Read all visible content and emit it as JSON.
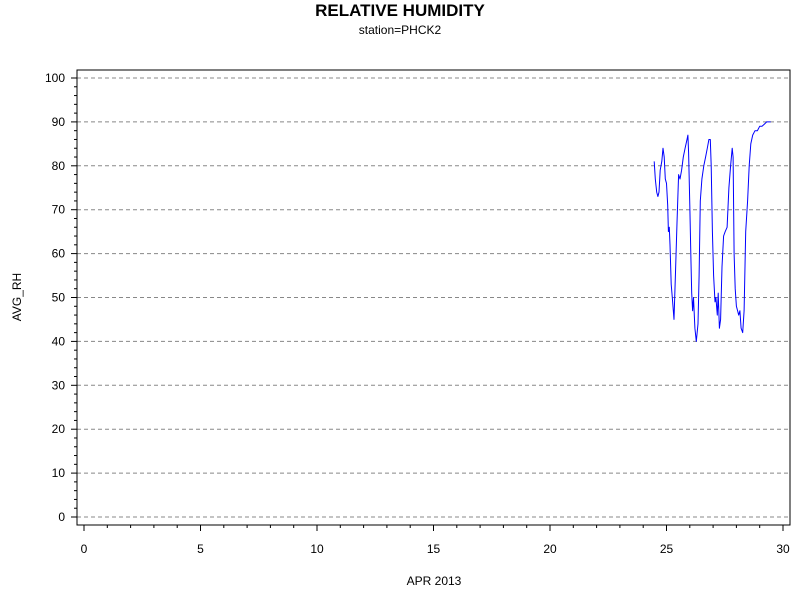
{
  "chart_data": {
    "type": "line",
    "title": "RELATIVE HUMIDITY",
    "subtitle": "station=PHCK2",
    "xlabel": "APR 2013",
    "ylabel": "AVG_RH",
    "xlim": [
      0,
      30
    ],
    "ylim": [
      0,
      100
    ],
    "x_ticks": [
      0,
      5,
      10,
      15,
      20,
      25,
      30
    ],
    "y_ticks": [
      0,
      10,
      20,
      30,
      40,
      50,
      60,
      70,
      80,
      90,
      100
    ],
    "grid": "horizontal-dashed",
    "series": [
      {
        "color": "#0000ff",
        "points": [
          [
            24.47,
            81
          ],
          [
            24.52,
            77
          ],
          [
            24.58,
            74
          ],
          [
            24.63,
            73
          ],
          [
            24.68,
            74
          ],
          [
            24.73,
            79
          ],
          [
            24.8,
            81
          ],
          [
            24.85,
            84
          ],
          [
            24.9,
            82
          ],
          [
            24.95,
            77
          ],
          [
            25.0,
            76
          ],
          [
            25.05,
            71
          ],
          [
            25.08,
            65
          ],
          [
            25.12,
            66
          ],
          [
            25.15,
            62
          ],
          [
            25.2,
            53
          ],
          [
            25.25,
            50
          ],
          [
            25.32,
            45
          ],
          [
            25.38,
            55
          ],
          [
            25.45,
            67
          ],
          [
            25.52,
            78
          ],
          [
            25.58,
            77
          ],
          [
            25.65,
            79
          ],
          [
            25.72,
            82
          ],
          [
            25.8,
            84
          ],
          [
            25.88,
            86
          ],
          [
            25.92,
            87
          ],
          [
            25.95,
            83
          ],
          [
            26.0,
            71
          ],
          [
            26.05,
            58
          ],
          [
            26.08,
            51
          ],
          [
            26.12,
            47
          ],
          [
            26.16,
            50
          ],
          [
            26.22,
            43
          ],
          [
            26.28,
            40
          ],
          [
            26.35,
            44
          ],
          [
            26.4,
            55
          ],
          [
            26.45,
            72
          ],
          [
            26.52,
            77
          ],
          [
            26.6,
            80
          ],
          [
            26.68,
            82
          ],
          [
            26.75,
            84
          ],
          [
            26.82,
            86
          ],
          [
            26.88,
            86
          ],
          [
            26.92,
            80
          ],
          [
            26.97,
            65
          ],
          [
            27.02,
            55
          ],
          [
            27.08,
            49
          ],
          [
            27.12,
            50
          ],
          [
            27.18,
            46
          ],
          [
            27.22,
            51
          ],
          [
            27.27,
            43
          ],
          [
            27.32,
            45
          ],
          [
            27.38,
            57
          ],
          [
            27.45,
            64
          ],
          [
            27.52,
            65
          ],
          [
            27.6,
            66
          ],
          [
            27.68,
            75
          ],
          [
            27.75,
            80
          ],
          [
            27.82,
            84
          ],
          [
            27.86,
            82
          ],
          [
            27.9,
            60
          ],
          [
            27.95,
            52
          ],
          [
            28.0,
            48
          ],
          [
            28.05,
            47
          ],
          [
            28.1,
            46
          ],
          [
            28.15,
            47
          ],
          [
            28.2,
            43
          ],
          [
            28.27,
            42
          ],
          [
            28.33,
            47
          ],
          [
            28.4,
            65
          ],
          [
            28.48,
            72
          ],
          [
            28.55,
            80
          ],
          [
            28.62,
            85
          ],
          [
            28.7,
            87
          ],
          [
            28.8,
            88
          ],
          [
            28.9,
            88
          ],
          [
            29.0,
            89
          ],
          [
            29.1,
            89
          ],
          [
            29.2,
            89.5
          ],
          [
            29.3,
            90
          ],
          [
            29.4,
            90
          ],
          [
            29.47,
            90
          ]
        ]
      }
    ]
  }
}
